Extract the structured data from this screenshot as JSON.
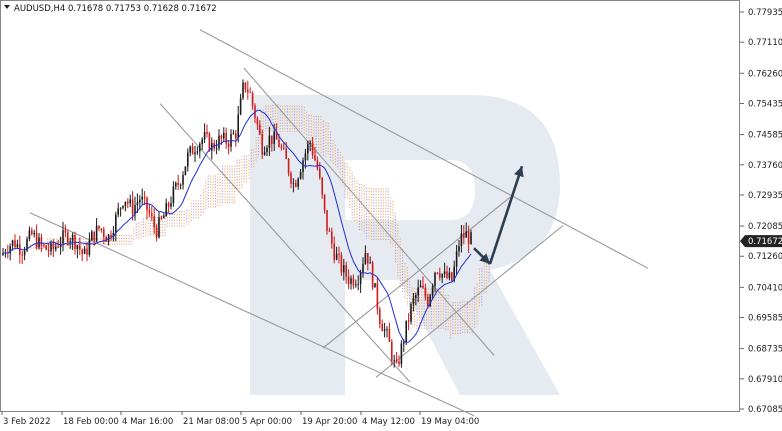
{
  "header": {
    "symbol": "AUDUSD,H4",
    "ohlc": "0.71678 0.71753 0.71628 0.71672"
  },
  "colors": {
    "bull_candle": "#1a1a1a",
    "bear_candle": "#d11a1a",
    "ma_line": "#1f2fd6",
    "cloud_orange": "#f0a050",
    "cloud_purple": "#a58be0",
    "trend_lines": "#9a9a9a",
    "forecast_arrow": "#2c3e50",
    "watermark": "#dde3ec",
    "price_tag_bg": "#222222"
  },
  "chart_data": {
    "type": "candlestick",
    "title": "AUDUSD,H4",
    "last_price": "0.71672",
    "ylim": [
      0.6705,
      0.7823
    ],
    "y_ticks": [
      "0.77935",
      "0.77110",
      "0.76260",
      "0.75435",
      "0.74585",
      "0.73760",
      "0.72935",
      "0.72085",
      "0.71260",
      "0.70410",
      "0.69585",
      "0.68735",
      "0.67910",
      "0.67085"
    ],
    "x_ticks": [
      "3 Feb 2022",
      "18 Feb 00:00",
      "4 Mar 16:00",
      "21 Mar 08:00",
      "5 Apr 00:00",
      "19 Apr 20:00",
      "4 May 12:00",
      "19 May 04:00"
    ],
    "price_path": [
      [
        0,
        0.712
      ],
      [
        6,
        0.715
      ],
      [
        14,
        0.7165
      ],
      [
        22,
        0.7145
      ],
      [
        32,
        0.7185
      ],
      [
        42,
        0.715
      ],
      [
        52,
        0.714
      ],
      [
        60,
        0.717
      ],
      [
        68,
        0.7185
      ],
      [
        76,
        0.7165
      ],
      [
        84,
        0.7125
      ],
      [
        92,
        0.718
      ],
      [
        100,
        0.7205
      ],
      [
        108,
        0.7175
      ],
      [
        116,
        0.723
      ],
      [
        124,
        0.729
      ],
      [
        132,
        0.7255
      ],
      [
        140,
        0.7285
      ],
      [
        148,
        0.725
      ],
      [
        156,
        0.7195
      ],
      [
        164,
        0.7235
      ],
      [
        172,
        0.729
      ],
      [
        180,
        0.7335
      ],
      [
        188,
        0.74
      ],
      [
        196,
        0.743
      ],
      [
        204,
        0.745
      ],
      [
        212,
        0.7425
      ],
      [
        220,
        0.7445
      ],
      [
        228,
        0.744
      ],
      [
        236,
        0.7465
      ],
      [
        244,
        0.76
      ],
      [
        250,
        0.757
      ],
      [
        256,
        0.75
      ],
      [
        262,
        0.7425
      ],
      [
        270,
        0.745
      ],
      [
        278,
        0.744
      ],
      [
        286,
        0.7385
      ],
      [
        294,
        0.732
      ],
      [
        302,
        0.7385
      ],
      [
        310,
        0.744
      ],
      [
        318,
        0.736
      ],
      [
        326,
        0.7215
      ],
      [
        334,
        0.714
      ],
      [
        342,
        0.709
      ],
      [
        350,
        0.706
      ],
      [
        358,
        0.707
      ],
      [
        366,
        0.7145
      ],
      [
        374,
        0.7045
      ],
      [
        380,
        0.6955
      ],
      [
        388,
        0.69
      ],
      [
        396,
        0.681
      ],
      [
        404,
        0.6905
      ],
      [
        412,
        0.6995
      ],
      [
        420,
        0.704
      ],
      [
        428,
        0.7005
      ],
      [
        436,
        0.71
      ],
      [
        444,
        0.707
      ],
      [
        452,
        0.706
      ],
      [
        460,
        0.7175
      ],
      [
        466,
        0.7185
      ],
      [
        472,
        0.7167
      ]
    ],
    "channel_lines": [
      {
        "name": "upper-resistance-1",
        "p1": [
          200,
          0.7745
        ],
        "p2": [
          648,
          0.7093
        ]
      },
      {
        "name": "upper-resistance-2",
        "p1": [
          244,
          0.764
        ],
        "p2": [
          494,
          0.6855
        ]
      },
      {
        "name": "lower-channel-1",
        "p1": [
          30,
          0.7245
        ],
        "p2": [
          474,
          0.669
        ]
      },
      {
        "name": "lower-channel-2",
        "p1": [
          160,
          0.7543
        ],
        "p2": [
          410,
          0.6782
        ]
      },
      {
        "name": "rising-channel-top",
        "p1": [
          323,
          0.6875
        ],
        "p2": [
          510,
          0.7287
        ]
      },
      {
        "name": "rising-channel-bottom",
        "p1": [
          376,
          0.6795
        ],
        "p2": [
          563,
          0.721
        ]
      }
    ],
    "forecast": [
      {
        "from": [
          474,
          0.7148
        ],
        "to": [
          490,
          0.7105
        ]
      },
      {
        "from": [
          490,
          0.7105
        ],
        "to": [
          522,
          0.7372
        ]
      }
    ],
    "indicators": [
      "moving average (blue)",
      "ichimoku cloud (orange / purple)"
    ]
  }
}
